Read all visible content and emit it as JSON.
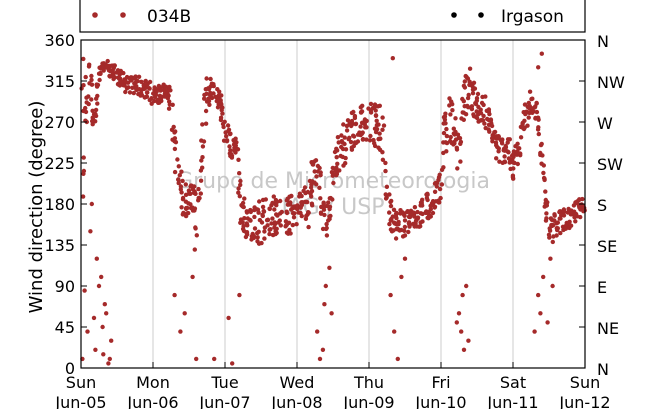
{
  "chart_data": {
    "type": "scatter",
    "title": "",
    "ylabel": "Wind direction (degree)",
    "ylim": [
      0,
      360
    ],
    "xlim": [
      0,
      7
    ],
    "yticks": [
      0,
      45,
      90,
      135,
      180,
      225,
      270,
      315,
      360
    ],
    "right_ticks": [
      "N",
      "NE",
      "E",
      "SE",
      "S",
      "SW",
      "W",
      "NW",
      "N"
    ],
    "x_ticks": [
      {
        "day": "Sun",
        "date": "Jun-05"
      },
      {
        "day": "Mon",
        "date": "Jun-06"
      },
      {
        "day": "Tue",
        "date": "Jun-07"
      },
      {
        "day": "Wed",
        "date": "Jun-08"
      },
      {
        "day": "Thu",
        "date": "Jun-09"
      },
      {
        "day": "Fri",
        "date": "Jun-10"
      },
      {
        "day": "Sat",
        "date": "Jun-11"
      },
      {
        "day": "Sun",
        "date": "Jun-12"
      }
    ],
    "grid": "vertical",
    "legend_placement": "top",
    "watermark": [
      "Grupo de Micrometeorologia",
      "IAG / USP"
    ],
    "series": [
      {
        "name": "034B",
        "color": "#a52a2a",
        "marker": "dot",
        "anchors": [
          [
            0.0,
            20,
            340
          ],
          [
            0.05,
            230,
            340
          ],
          [
            0.12,
            290,
            340
          ],
          [
            0.18,
            250,
            300
          ],
          [
            0.25,
            310,
            330
          ],
          [
            0.35,
            325,
            340
          ],
          [
            0.5,
            310,
            330
          ],
          [
            0.65,
            300,
            320
          ],
          [
            0.8,
            300,
            320
          ],
          [
            0.95,
            290,
            315
          ],
          [
            1.05,
            290,
            310
          ],
          [
            1.1,
            290,
            310
          ],
          [
            1.2,
            300,
            315
          ],
          [
            1.28,
            240,
            300
          ],
          [
            1.33,
            190,
            240
          ],
          [
            1.4,
            170,
            215
          ],
          [
            1.48,
            160,
            200
          ],
          [
            1.5,
            180,
            210
          ],
          [
            1.55,
            170,
            205
          ],
          [
            1.62,
            140,
            190
          ],
          [
            1.7,
            230,
            300
          ],
          [
            1.75,
            280,
            320
          ],
          [
            1.85,
            295,
            315
          ],
          [
            1.95,
            270,
            300
          ],
          [
            2.0,
            240,
            270
          ],
          [
            2.08,
            230,
            265
          ],
          [
            2.15,
            230,
            260
          ],
          [
            2.22,
            150,
            210
          ],
          [
            2.3,
            135,
            175
          ],
          [
            2.4,
            140,
            185
          ],
          [
            2.5,
            135,
            190
          ],
          [
            2.6,
            145,
            190
          ],
          [
            2.7,
            145,
            190
          ],
          [
            2.8,
            145,
            185
          ],
          [
            2.9,
            145,
            190
          ],
          [
            3.0,
            155,
            190
          ],
          [
            3.1,
            170,
            200
          ],
          [
            3.15,
            150,
            200
          ],
          [
            3.2,
            170,
            230
          ],
          [
            3.3,
            200,
            240
          ],
          [
            3.35,
            150,
            200
          ],
          [
            3.42,
            130,
            180
          ],
          [
            3.5,
            190,
            230
          ],
          [
            3.55,
            210,
            250
          ],
          [
            3.62,
            215,
            270
          ],
          [
            3.7,
            230,
            275
          ],
          [
            3.8,
            245,
            285
          ],
          [
            3.9,
            250,
            290
          ],
          [
            4.0,
            250,
            290
          ],
          [
            4.1,
            240,
            290
          ],
          [
            4.18,
            230,
            290
          ],
          [
            4.25,
            170,
            250
          ],
          [
            4.32,
            145,
            175
          ],
          [
            4.4,
            140,
            180
          ],
          [
            4.5,
            145,
            175
          ],
          [
            4.6,
            150,
            175
          ],
          [
            4.7,
            155,
            185
          ],
          [
            4.8,
            160,
            195
          ],
          [
            4.9,
            170,
            200
          ],
          [
            5.0,
            185,
            215
          ],
          [
            5.05,
            230,
            290
          ],
          [
            5.12,
            250,
            300
          ],
          [
            5.2,
            240,
            280
          ],
          [
            5.25,
            200,
            260
          ],
          [
            5.32,
            270,
            320
          ],
          [
            5.4,
            290,
            330
          ],
          [
            5.48,
            270,
            310
          ],
          [
            5.55,
            260,
            300
          ],
          [
            5.62,
            260,
            300
          ],
          [
            5.7,
            245,
            275
          ],
          [
            5.78,
            225,
            260
          ],
          [
            5.85,
            220,
            255
          ],
          [
            5.92,
            230,
            260
          ],
          [
            6.0,
            200,
            240
          ],
          [
            6.06,
            210,
            250
          ],
          [
            6.1,
            230,
            270
          ],
          [
            6.18,
            255,
            295
          ],
          [
            6.25,
            280,
            310
          ],
          [
            6.32,
            270,
            300
          ],
          [
            6.4,
            220,
            250
          ],
          [
            6.45,
            165,
            200
          ],
          [
            6.5,
            130,
            165
          ],
          [
            6.6,
            145,
            170
          ],
          [
            6.7,
            150,
            175
          ],
          [
            6.8,
            150,
            175
          ],
          [
            6.9,
            165,
            185
          ],
          [
            7.0,
            165,
            190
          ]
        ],
        "outliers": [
          [
            0.02,
            10
          ],
          [
            0.05,
            85
          ],
          [
            0.09,
            40
          ],
          [
            0.13,
            150
          ],
          [
            0.18,
            55
          ],
          [
            0.22,
            120
          ],
          [
            0.28,
            100
          ],
          [
            0.31,
            15
          ],
          [
            0.33,
            70
          ],
          [
            0.38,
            5
          ],
          [
            0.42,
            30
          ],
          [
            0.15,
            180
          ],
          [
            0.25,
            90
          ],
          [
            0.35,
            60
          ],
          [
            0.08,
            270
          ],
          [
            0.2,
            20
          ],
          [
            0.3,
            45
          ],
          [
            0.4,
            10
          ],
          [
            1.3,
            80
          ],
          [
            1.38,
            40
          ],
          [
            1.44,
            60
          ],
          [
            1.55,
            100
          ],
          [
            1.58,
            130
          ],
          [
            1.6,
            10
          ],
          [
            1.85,
            10
          ],
          [
            2.05,
            55
          ],
          [
            2.1,
            5
          ],
          [
            2.2,
            80
          ],
          [
            2.12,
            250
          ],
          [
            2.18,
            240
          ],
          [
            3.28,
            40
          ],
          [
            3.32,
            10
          ],
          [
            3.38,
            70
          ],
          [
            3.4,
            90
          ],
          [
            3.45,
            110
          ],
          [
            3.48,
            60
          ],
          [
            3.36,
            20
          ],
          [
            4.3,
            80
          ],
          [
            4.35,
            40
          ],
          [
            4.4,
            10
          ],
          [
            4.45,
            100
          ],
          [
            4.5,
            120
          ],
          [
            4.33,
            340
          ],
          [
            5.25,
            60
          ],
          [
            5.28,
            40
          ],
          [
            5.3,
            80
          ],
          [
            5.32,
            20
          ],
          [
            5.35,
            90
          ],
          [
            5.22,
            50
          ],
          [
            5.38,
            30
          ],
          [
            6.3,
            40
          ],
          [
            6.35,
            80
          ],
          [
            6.38,
            60
          ],
          [
            6.42,
            100
          ],
          [
            6.48,
            50
          ],
          [
            6.52,
            120
          ],
          [
            6.55,
            90
          ],
          [
            6.4,
            345
          ],
          [
            6.35,
            330
          ]
        ]
      },
      {
        "name": "Irgason",
        "color": "#000000",
        "marker": "dot",
        "anchors": [],
        "outliers": []
      }
    ]
  }
}
